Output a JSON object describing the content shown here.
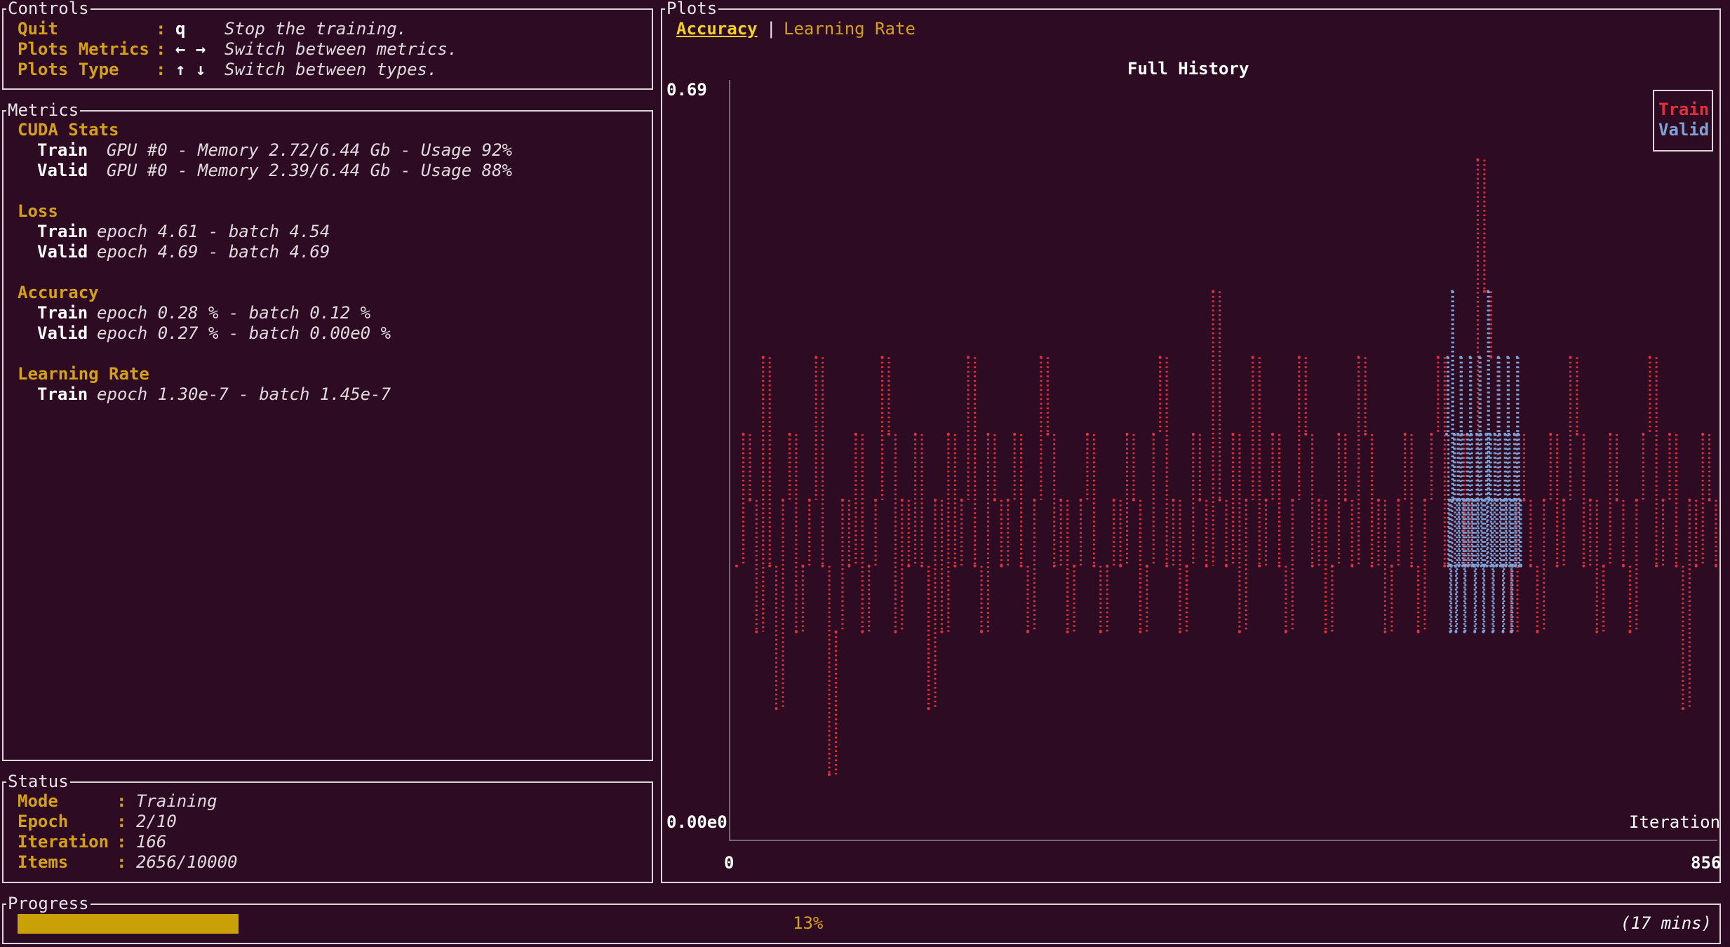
{
  "controls": {
    "title": "Controls",
    "rows": [
      {
        "name": "Quit",
        "key": "q",
        "desc": "Stop the training."
      },
      {
        "name": "Plots Metrics",
        "key": "← →",
        "desc": "Switch between metrics."
      },
      {
        "name": "Plots Type",
        "key": "↑ ↓",
        "desc": "Switch between types."
      }
    ]
  },
  "metrics": {
    "title": "Metrics",
    "cuda": {
      "heading": "CUDA Stats",
      "train_label": "Train",
      "train": "GPU #0 - Memory 2.72/6.44 Gb - Usage 92%",
      "valid_label": "Valid",
      "valid": "GPU #0 - Memory 2.39/6.44 Gb - Usage 88%"
    },
    "loss": {
      "heading": "Loss",
      "train_label": "Train",
      "train": "epoch 4.61 - batch 4.54",
      "valid_label": "Valid",
      "valid": "epoch 4.69 - batch 4.69"
    },
    "accuracy": {
      "heading": "Accuracy",
      "train_label": "Train",
      "train": "epoch 0.28 % - batch 0.12 %",
      "valid_label": "Valid",
      "valid": "epoch 0.27 % - batch 0.00e0 %"
    },
    "lr": {
      "heading": "Learning Rate",
      "train_label": "Train",
      "train": "epoch 1.30e-7 - batch 1.45e-7"
    }
  },
  "status": {
    "title": "Status",
    "rows": [
      {
        "label": "Mode",
        "value": "Training"
      },
      {
        "label": "Epoch",
        "value": "2/10"
      },
      {
        "label": "Iteration",
        "value": "166"
      },
      {
        "label": "Items",
        "value": "2656/10000"
      }
    ]
  },
  "plots": {
    "title": "Plots",
    "tabs": [
      "Accuracy",
      "Learning Rate"
    ],
    "separator": "|"
  },
  "progress": {
    "title": "Progress",
    "percent_label": "13%",
    "fraction": 0.13,
    "eta": "(17 mins)",
    "color": "#c9a008"
  },
  "chart_data": {
    "type": "line",
    "title": "Full History",
    "xlabel": "Iteration",
    "ylabel": "",
    "x_tick_labels": [
      "0",
      "856"
    ],
    "y_tick_labels": [
      "0.69",
      "0.00e0"
    ],
    "xlim": [
      0,
      856
    ],
    "ylim": [
      0,
      0.69
    ],
    "legend_position": "top-right",
    "series": [
      {
        "name": "Train",
        "color": "#e0323c",
        "values": [
          0.25,
          0.37,
          0.31,
          0.19,
          0.44,
          0.25,
          0.12,
          0.31,
          0.37,
          0.19,
          0.25,
          0.31,
          0.44,
          0.25,
          0.06,
          0.19,
          0.31,
          0.25,
          0.37,
          0.19,
          0.25,
          0.31,
          0.44,
          0.37,
          0.19,
          0.31,
          0.25,
          0.37,
          0.25,
          0.12,
          0.31,
          0.19,
          0.37,
          0.25,
          0.31,
          0.44,
          0.25,
          0.19,
          0.37,
          0.31,
          0.25,
          0.31,
          0.37,
          0.25,
          0.19,
          0.31,
          0.44,
          0.37,
          0.25,
          0.31,
          0.19,
          0.25,
          0.31,
          0.37,
          0.25,
          0.19,
          0.25,
          0.31,
          0.25,
          0.37,
          0.31,
          0.19,
          0.25,
          0.37,
          0.44,
          0.25,
          0.31,
          0.19,
          0.25,
          0.37,
          0.31,
          0.25,
          0.5,
          0.31,
          0.25,
          0.37,
          0.19,
          0.31,
          0.44,
          0.25,
          0.31,
          0.37,
          0.25,
          0.19,
          0.31,
          0.44,
          0.37,
          0.25,
          0.31,
          0.19,
          0.25,
          0.37,
          0.31,
          0.25,
          0.44,
          0.37,
          0.25,
          0.31,
          0.19,
          0.25,
          0.31,
          0.37,
          0.25,
          0.19,
          0.31,
          0.37,
          0.44,
          0.25,
          0.31,
          0.37,
          0.25,
          0.31,
          0.62,
          0.5,
          0.44,
          0.31,
          0.25,
          0.19,
          0.37,
          0.31,
          0.25,
          0.19,
          0.31,
          0.37,
          0.25,
          0.31,
          0.44,
          0.37,
          0.25,
          0.31,
          0.19,
          0.25,
          0.37,
          0.31,
          0.25,
          0.19,
          0.31,
          0.37,
          0.44,
          0.25,
          0.31,
          0.37,
          0.25,
          0.12,
          0.31,
          0.25,
          0.37,
          0.31,
          0.25
        ]
      },
      {
        "name": "Valid",
        "color": "#7ea2d6",
        "values": [
          0.37,
          0.44,
          0.25,
          0.31,
          0.19,
          0.25,
          0.5,
          0.31,
          0.37,
          0.25,
          0.19,
          0.31,
          0.37,
          0.25,
          0.31,
          0.44,
          0.37,
          0.25,
          0.31,
          0.19,
          0.25,
          0.31,
          0.37,
          0.25,
          0.31,
          0.44,
          0.37,
          0.25,
          0.31,
          0.25,
          0.19,
          0.31,
          0.37,
          0.25,
          0.31,
          0.44,
          0.37,
          0.25,
          0.31,
          0.19,
          0.25,
          0.31,
          0.37,
          0.25,
          0.5,
          0.31,
          0.37,
          0.25,
          0.31,
          0.19,
          0.25,
          0.37,
          0.31,
          0.25,
          0.31,
          0.44,
          0.37,
          0.25,
          0.31,
          0.25,
          0.19,
          0.31,
          0.37,
          0.25,
          0.31,
          0.44,
          0.37,
          0.25,
          0.31,
          0.19,
          0.25,
          0.31,
          0.37,
          0.25,
          0.31,
          0.44,
          0.37,
          0.25,
          0.31,
          0.25
        ]
      }
    ]
  }
}
